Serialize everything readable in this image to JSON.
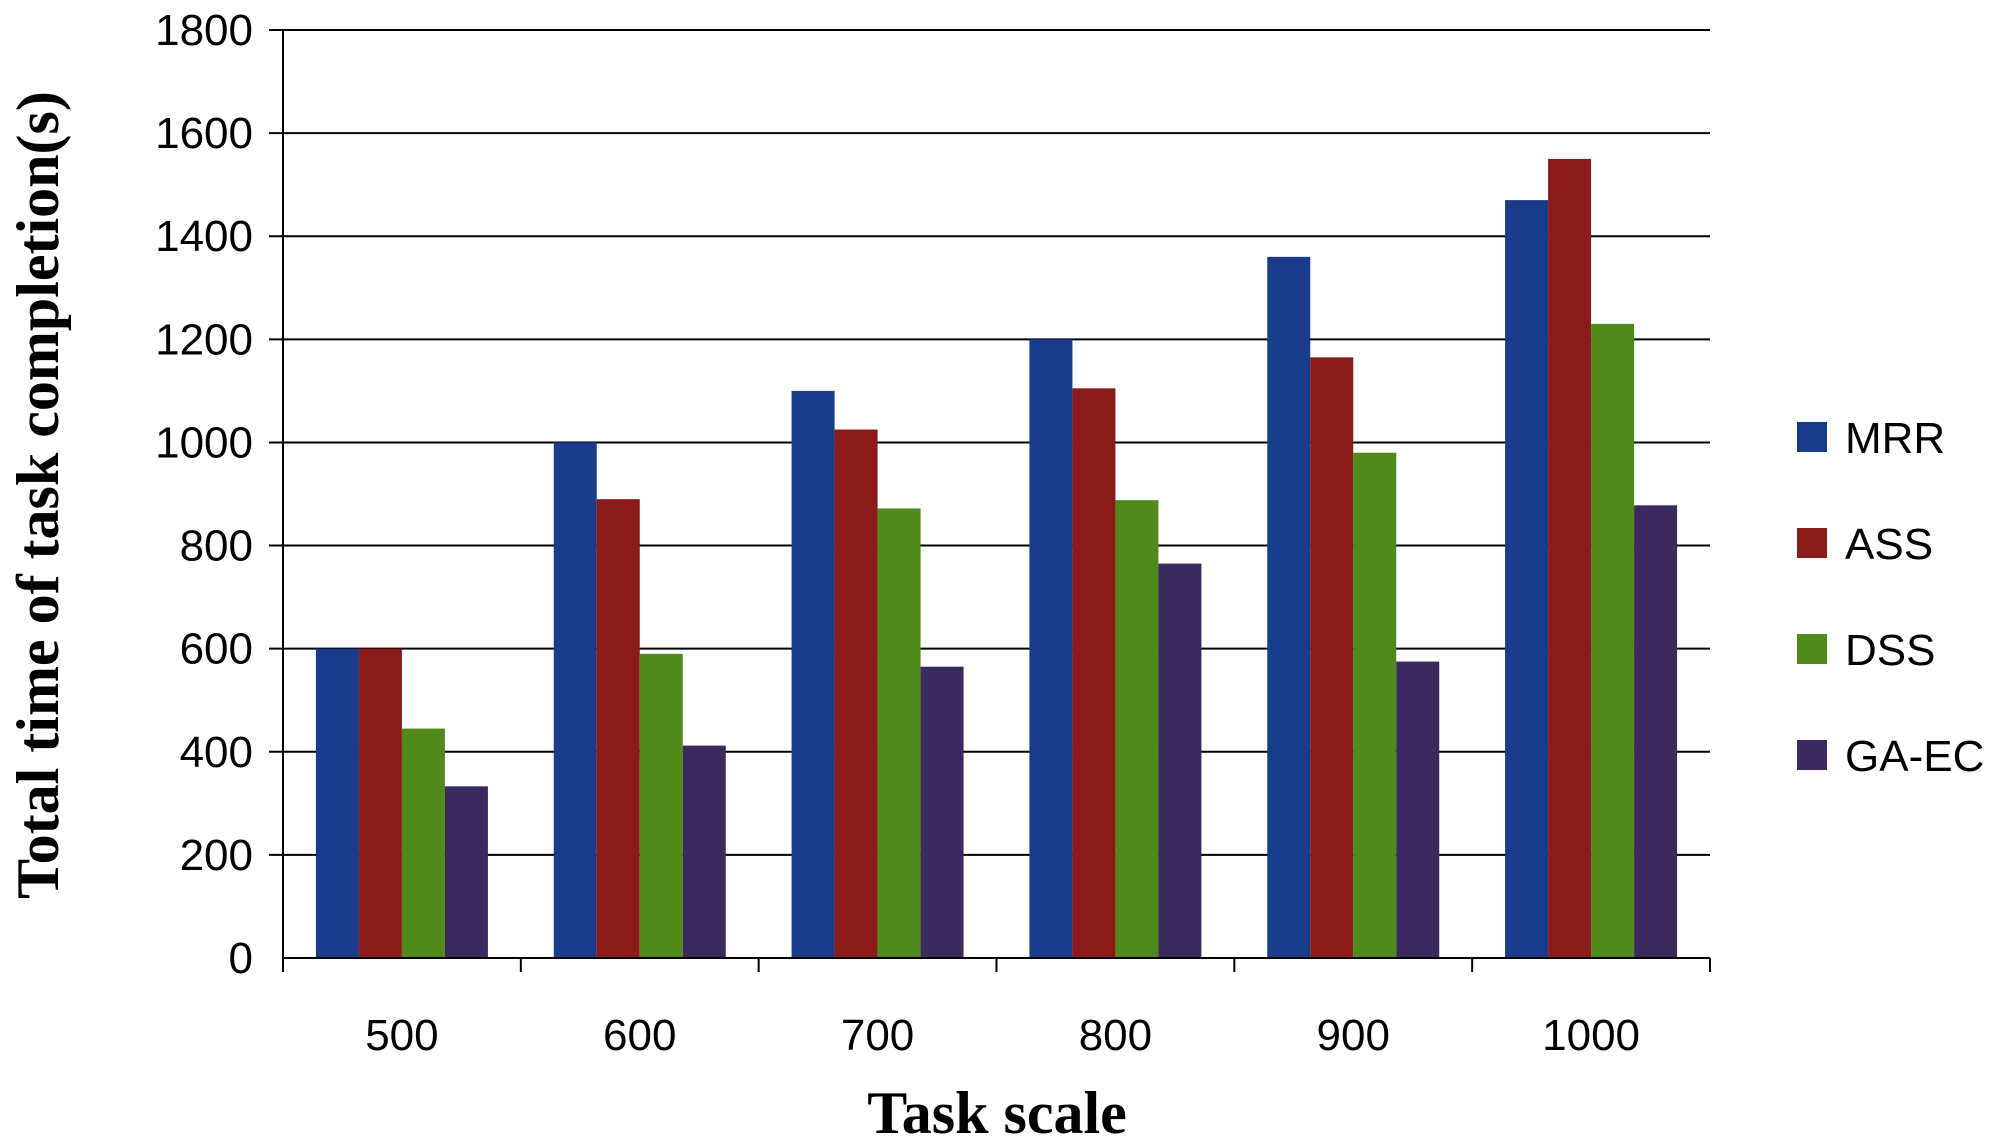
{
  "chart_data": {
    "type": "bar",
    "title": "",
    "xlabel": "Task scale",
    "ylabel": "Total time of task completion(s)",
    "categories": [
      "500",
      "600",
      "700",
      "800",
      "900",
      "1000"
    ],
    "ylim": [
      0,
      1800
    ],
    "yticks": [
      0,
      200,
      400,
      600,
      800,
      1000,
      1200,
      1400,
      1600,
      1800
    ],
    "ytick_labels": [
      "0",
      "200",
      "400",
      "600",
      "800",
      "1000",
      "1200",
      "1400",
      "1600",
      "1800"
    ],
    "grid": true,
    "legend_position": "right",
    "series": [
      {
        "name": "MRR",
        "color": "#1a3a8a",
        "values": [
          600,
          1000,
          1100,
          1200,
          1360,
          1470
        ]
      },
      {
        "name": "ASS",
        "color": "#8b1a1a",
        "values": [
          600,
          890,
          1025,
          1105,
          1165,
          1550
        ]
      },
      {
        "name": "DSS",
        "color": "#4f8a1a",
        "values": [
          445,
          590,
          872,
          888,
          980,
          1230
        ]
      },
      {
        "name": "GA-EC",
        "color": "#3a2a5e",
        "values": [
          333,
          412,
          565,
          765,
          575,
          878
        ]
      }
    ]
  }
}
